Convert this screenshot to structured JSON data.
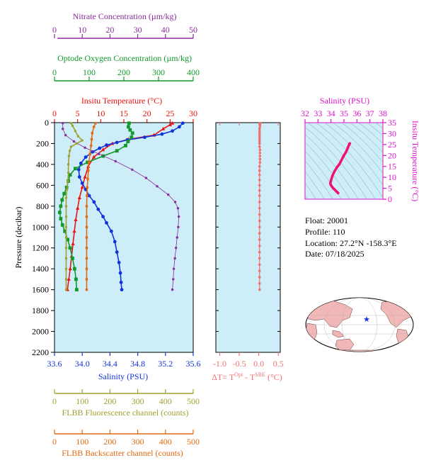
{
  "float_info": {
    "float_line": "Float:  20001",
    "profile_line": "Profile:  110",
    "location_line": "Location:  27.2°N  -158.3°E",
    "date_line": "Date:  07/18/2025"
  },
  "colors": {
    "plot_bg": "#cdeef8",
    "nitrate": "#8a2b9c",
    "oxygen": "#119a2a",
    "temperature": "#ee1111",
    "salinity": "#1133dd",
    "fluorescence": "#a0a030",
    "backscatter": "#e26a12",
    "delta_t": "#f07070",
    "ts_axis": "#dd11cc",
    "ts_line": "#ee1177"
  },
  "chart_data": [
    {
      "type": "line",
      "name": "main-profile",
      "ylabel": "Pressure (decibar)",
      "ylim": [
        2200,
        0
      ],
      "yticks": [
        0,
        200,
        400,
        600,
        800,
        1000,
        1200,
        1400,
        1600,
        1800,
        2000,
        2200
      ],
      "axes": {
        "nitrate": {
          "label": "Nitrate Concentration (µm/kg)",
          "range": [
            0,
            50
          ],
          "ticks": [
            0,
            10,
            20,
            30,
            40,
            50
          ]
        },
        "oxygen": {
          "label": "Optode Oxygen Concentration (µm/kg)",
          "range": [
            0,
            400
          ],
          "ticks": [
            0,
            100,
            200,
            300,
            400
          ]
        },
        "temperature": {
          "label": "Insitu Temperature (°C)",
          "range": [
            0,
            30
          ],
          "ticks": [
            0,
            5,
            10,
            15,
            20,
            25,
            30
          ]
        },
        "salinity": {
          "label": "Salinity (PSU)",
          "range": [
            33.6,
            35.6
          ],
          "ticks": [
            33.6,
            34.0,
            34.4,
            34.8,
            35.2,
            35.6
          ],
          "tick_labels": [
            "33.6",
            "34.0",
            "34.4",
            "34.8",
            "35.2",
            "35.6"
          ]
        },
        "fluorescence": {
          "label": "FLBB Fluorescence channel (counts)",
          "range": [
            0,
            500
          ],
          "ticks": [
            0,
            100,
            200,
            300,
            400,
            500
          ]
        },
        "backscatter": {
          "label": "FLBB Backscatter channel (counts)",
          "range": [
            0,
            500
          ],
          "ticks": [
            0,
            100,
            200,
            300,
            400,
            500
          ]
        }
      },
      "series": [
        {
          "axis": "temperature",
          "marker": "triangle",
          "points": [
            [
              25.5,
              5
            ],
            [
              25.0,
              20
            ],
            [
              23.5,
              60
            ],
            [
              21.5,
              120
            ],
            [
              16.0,
              160
            ],
            [
              12.5,
              200
            ],
            [
              10.5,
              260
            ],
            [
              8.5,
              330
            ],
            [
              7.3,
              420
            ],
            [
              6.6,
              520
            ],
            [
              6.0,
              620
            ],
            [
              5.4,
              720
            ],
            [
              5.0,
              820
            ],
            [
              4.6,
              930
            ],
            [
              4.3,
              1040
            ],
            [
              4.0,
              1160
            ],
            [
              3.7,
              1280
            ],
            [
              3.4,
              1400
            ],
            [
              3.1,
              1500
            ],
            [
              2.8,
              1600
            ]
          ]
        },
        {
          "axis": "salinity",
          "marker": "circle",
          "points": [
            [
              35.45,
              5
            ],
            [
              35.4,
              40
            ],
            [
              35.3,
              80
            ],
            [
              35.15,
              110
            ],
            [
              34.9,
              140
            ],
            [
              34.65,
              165
            ],
            [
              34.5,
              190
            ],
            [
              34.35,
              215
            ],
            [
              34.25,
              245
            ],
            [
              34.15,
              280
            ],
            [
              34.05,
              330
            ],
            [
              33.98,
              390
            ],
            [
              33.95,
              450
            ],
            [
              33.96,
              520
            ],
            [
              34.0,
              580
            ],
            [
              34.05,
              640
            ],
            [
              34.1,
              700
            ],
            [
              34.17,
              760
            ],
            [
              34.23,
              830
            ],
            [
              34.3,
              900
            ],
            [
              34.35,
              960
            ],
            [
              34.42,
              1040
            ],
            [
              34.47,
              1140
            ],
            [
              34.5,
              1240
            ],
            [
              34.53,
              1340
            ],
            [
              34.55,
              1440
            ],
            [
              34.56,
              1530
            ],
            [
              34.57,
              1600
            ]
          ]
        },
        {
          "axis": "oxygen",
          "marker": "square",
          "points": [
            [
              215,
              5
            ],
            [
              213,
              40
            ],
            [
              218,
              70
            ],
            [
              225,
              100
            ],
            [
              222,
              140
            ],
            [
              212,
              180
            ],
            [
              205,
              220
            ],
            [
              180,
              270
            ],
            [
              140,
              320
            ],
            [
              95,
              380
            ],
            [
              60,
              440
            ],
            [
              45,
              500
            ],
            [
              40,
              560
            ],
            [
              35,
              620
            ],
            [
              28,
              680
            ],
            [
              22,
              740
            ],
            [
              18,
              800
            ],
            [
              15,
              860
            ],
            [
              18,
              920
            ],
            [
              23,
              980
            ],
            [
              30,
              1040
            ],
            [
              38,
              1120
            ],
            [
              45,
              1200
            ],
            [
              52,
              1300
            ],
            [
              58,
              1400
            ],
            [
              62,
              1500
            ],
            [
              64,
              1600
            ]
          ]
        },
        {
          "axis": "nitrate",
          "marker": "circle",
          "points": [
            [
              3,
              5
            ],
            [
              3,
              60
            ],
            [
              4,
              120
            ],
            [
              7,
              180
            ],
            [
              11,
              240
            ],
            [
              16,
              300
            ],
            [
              22,
              370
            ],
            [
              28,
              450
            ],
            [
              33,
              530
            ],
            [
              37,
              610
            ],
            [
              41,
              690
            ],
            [
              43.5,
              760
            ],
            [
              44.5,
              820
            ],
            [
              44.8,
              900
            ],
            [
              44.6,
              1000
            ],
            [
              44.2,
              1100
            ],
            [
              43.8,
              1200
            ],
            [
              43.4,
              1300
            ],
            [
              43.0,
              1400
            ],
            [
              42.8,
              1500
            ],
            [
              42.5,
              1600
            ]
          ]
        },
        {
          "axis": "fluorescence",
          "marker": "circle",
          "points": [
            [
              60,
              5
            ],
            [
              65,
              30
            ],
            [
              75,
              80
            ],
            [
              85,
              130
            ],
            [
              100,
              170
            ],
            [
              80,
              200
            ],
            [
              60,
              230
            ],
            [
              55,
              270
            ],
            [
              52,
              320
            ],
            [
              50,
              400
            ],
            [
              50,
              480
            ],
            [
              48,
              560
            ],
            [
              45,
              640
            ],
            [
              42,
              720
            ],
            [
              42,
              800
            ],
            [
              42,
              900
            ],
            [
              42,
              1000
            ],
            [
              42,
              1100
            ],
            [
              42,
              1200
            ],
            [
              42,
              1300
            ],
            [
              42,
              1400
            ],
            [
              42,
              1500
            ],
            [
              42,
              1600
            ]
          ]
        },
        {
          "axis": "backscatter",
          "marker": "square",
          "points": [
            [
              148,
              5
            ],
            [
              142,
              40
            ],
            [
              136,
              100
            ],
            [
              134,
              160
            ],
            [
              132,
              220
            ],
            [
              128,
              300
            ],
            [
              124,
              380
            ],
            [
              122,
              460
            ],
            [
              120,
              540
            ],
            [
              118,
              620
            ],
            [
              117,
              700
            ],
            [
              116,
              800
            ],
            [
              116,
              900
            ],
            [
              116,
              1000
            ],
            [
              116,
              1100
            ],
            [
              116,
              1200
            ],
            [
              116,
              1300
            ],
            [
              116,
              1400
            ],
            [
              116,
              1500
            ],
            [
              116,
              1600
            ]
          ]
        }
      ]
    },
    {
      "type": "line",
      "name": "delta-t",
      "xlabel": "ΔT= T^Opt - T^SBE (°C)",
      "xlabel_parts": {
        "prefix": "ΔT= T",
        "sup1": "Opt",
        "minus": " - T",
        "sup2": "SBE",
        "suffix": " (°C)"
      },
      "xlim": [
        -1.1,
        0.55
      ],
      "xticks": [
        -1.0,
        -0.5,
        0.0,
        0.5
      ],
      "xtick_labels": [
        "-1.0",
        "-0.5",
        "0.0",
        "0.5"
      ],
      "ylim": [
        2200,
        0
      ],
      "points": [
        [
          0.04,
          5
        ],
        [
          0.03,
          20
        ],
        [
          0.03,
          40
        ],
        [
          0.02,
          60
        ],
        [
          0.02,
          80
        ],
        [
          0.02,
          100
        ],
        [
          0.02,
          120
        ],
        [
          0.02,
          140
        ],
        [
          0.02,
          160
        ],
        [
          0.02,
          180
        ],
        [
          0.02,
          200
        ],
        [
          0.02,
          230
        ],
        [
          0.03,
          260
        ],
        [
          0.03,
          290
        ],
        [
          0.03,
          320
        ],
        [
          0.03,
          350
        ],
        [
          0.03,
          380
        ],
        [
          0.02,
          420
        ],
        [
          0.02,
          460
        ],
        [
          0.02,
          500
        ],
        [
          0.02,
          550
        ],
        [
          0.02,
          600
        ],
        [
          0.02,
          650
        ],
        [
          0.02,
          700
        ],
        [
          0.02,
          760
        ],
        [
          0.02,
          820
        ],
        [
          0.02,
          880
        ],
        [
          0.02,
          940
        ],
        [
          0.02,
          1000
        ],
        [
          0.02,
          1060
        ],
        [
          0.02,
          1120
        ],
        [
          0.02,
          1180
        ],
        [
          0.02,
          1240
        ],
        [
          0.02,
          1300
        ],
        [
          0.02,
          1360
        ],
        [
          0.02,
          1420
        ],
        [
          0.02,
          1480
        ],
        [
          0.02,
          1540
        ],
        [
          0.02,
          1600
        ]
      ]
    },
    {
      "type": "scatter",
      "name": "ts-diagram",
      "title": "Salinity (PSU)",
      "ylabel": "Insitu Temperature (°C)",
      "xlim": [
        32,
        38
      ],
      "ylim": [
        0,
        35
      ],
      "xticks": [
        32,
        33,
        34,
        35,
        36,
        37,
        38
      ],
      "yticks": [
        0,
        5,
        10,
        15,
        20,
        25,
        30,
        35
      ],
      "points": [
        [
          34.55,
          2.8
        ],
        [
          34.45,
          3.4
        ],
        [
          34.35,
          4.0
        ],
        [
          34.25,
          4.6
        ],
        [
          34.17,
          5.0
        ],
        [
          34.05,
          6.0
        ],
        [
          33.98,
          6.6
        ],
        [
          33.95,
          7.3
        ],
        [
          34.0,
          8.5
        ],
        [
          34.1,
          10.5
        ],
        [
          34.25,
          12.5
        ],
        [
          34.45,
          14.5
        ],
        [
          34.65,
          16.0
        ],
        [
          34.95,
          19.5
        ],
        [
          35.15,
          21.5
        ],
        [
          35.3,
          23.5
        ],
        [
          35.4,
          25.0
        ],
        [
          35.45,
          25.5
        ]
      ]
    }
  ],
  "map": {
    "marker_lat": 27.2,
    "marker_lon": -158.3,
    "marker_symbol": "★"
  }
}
